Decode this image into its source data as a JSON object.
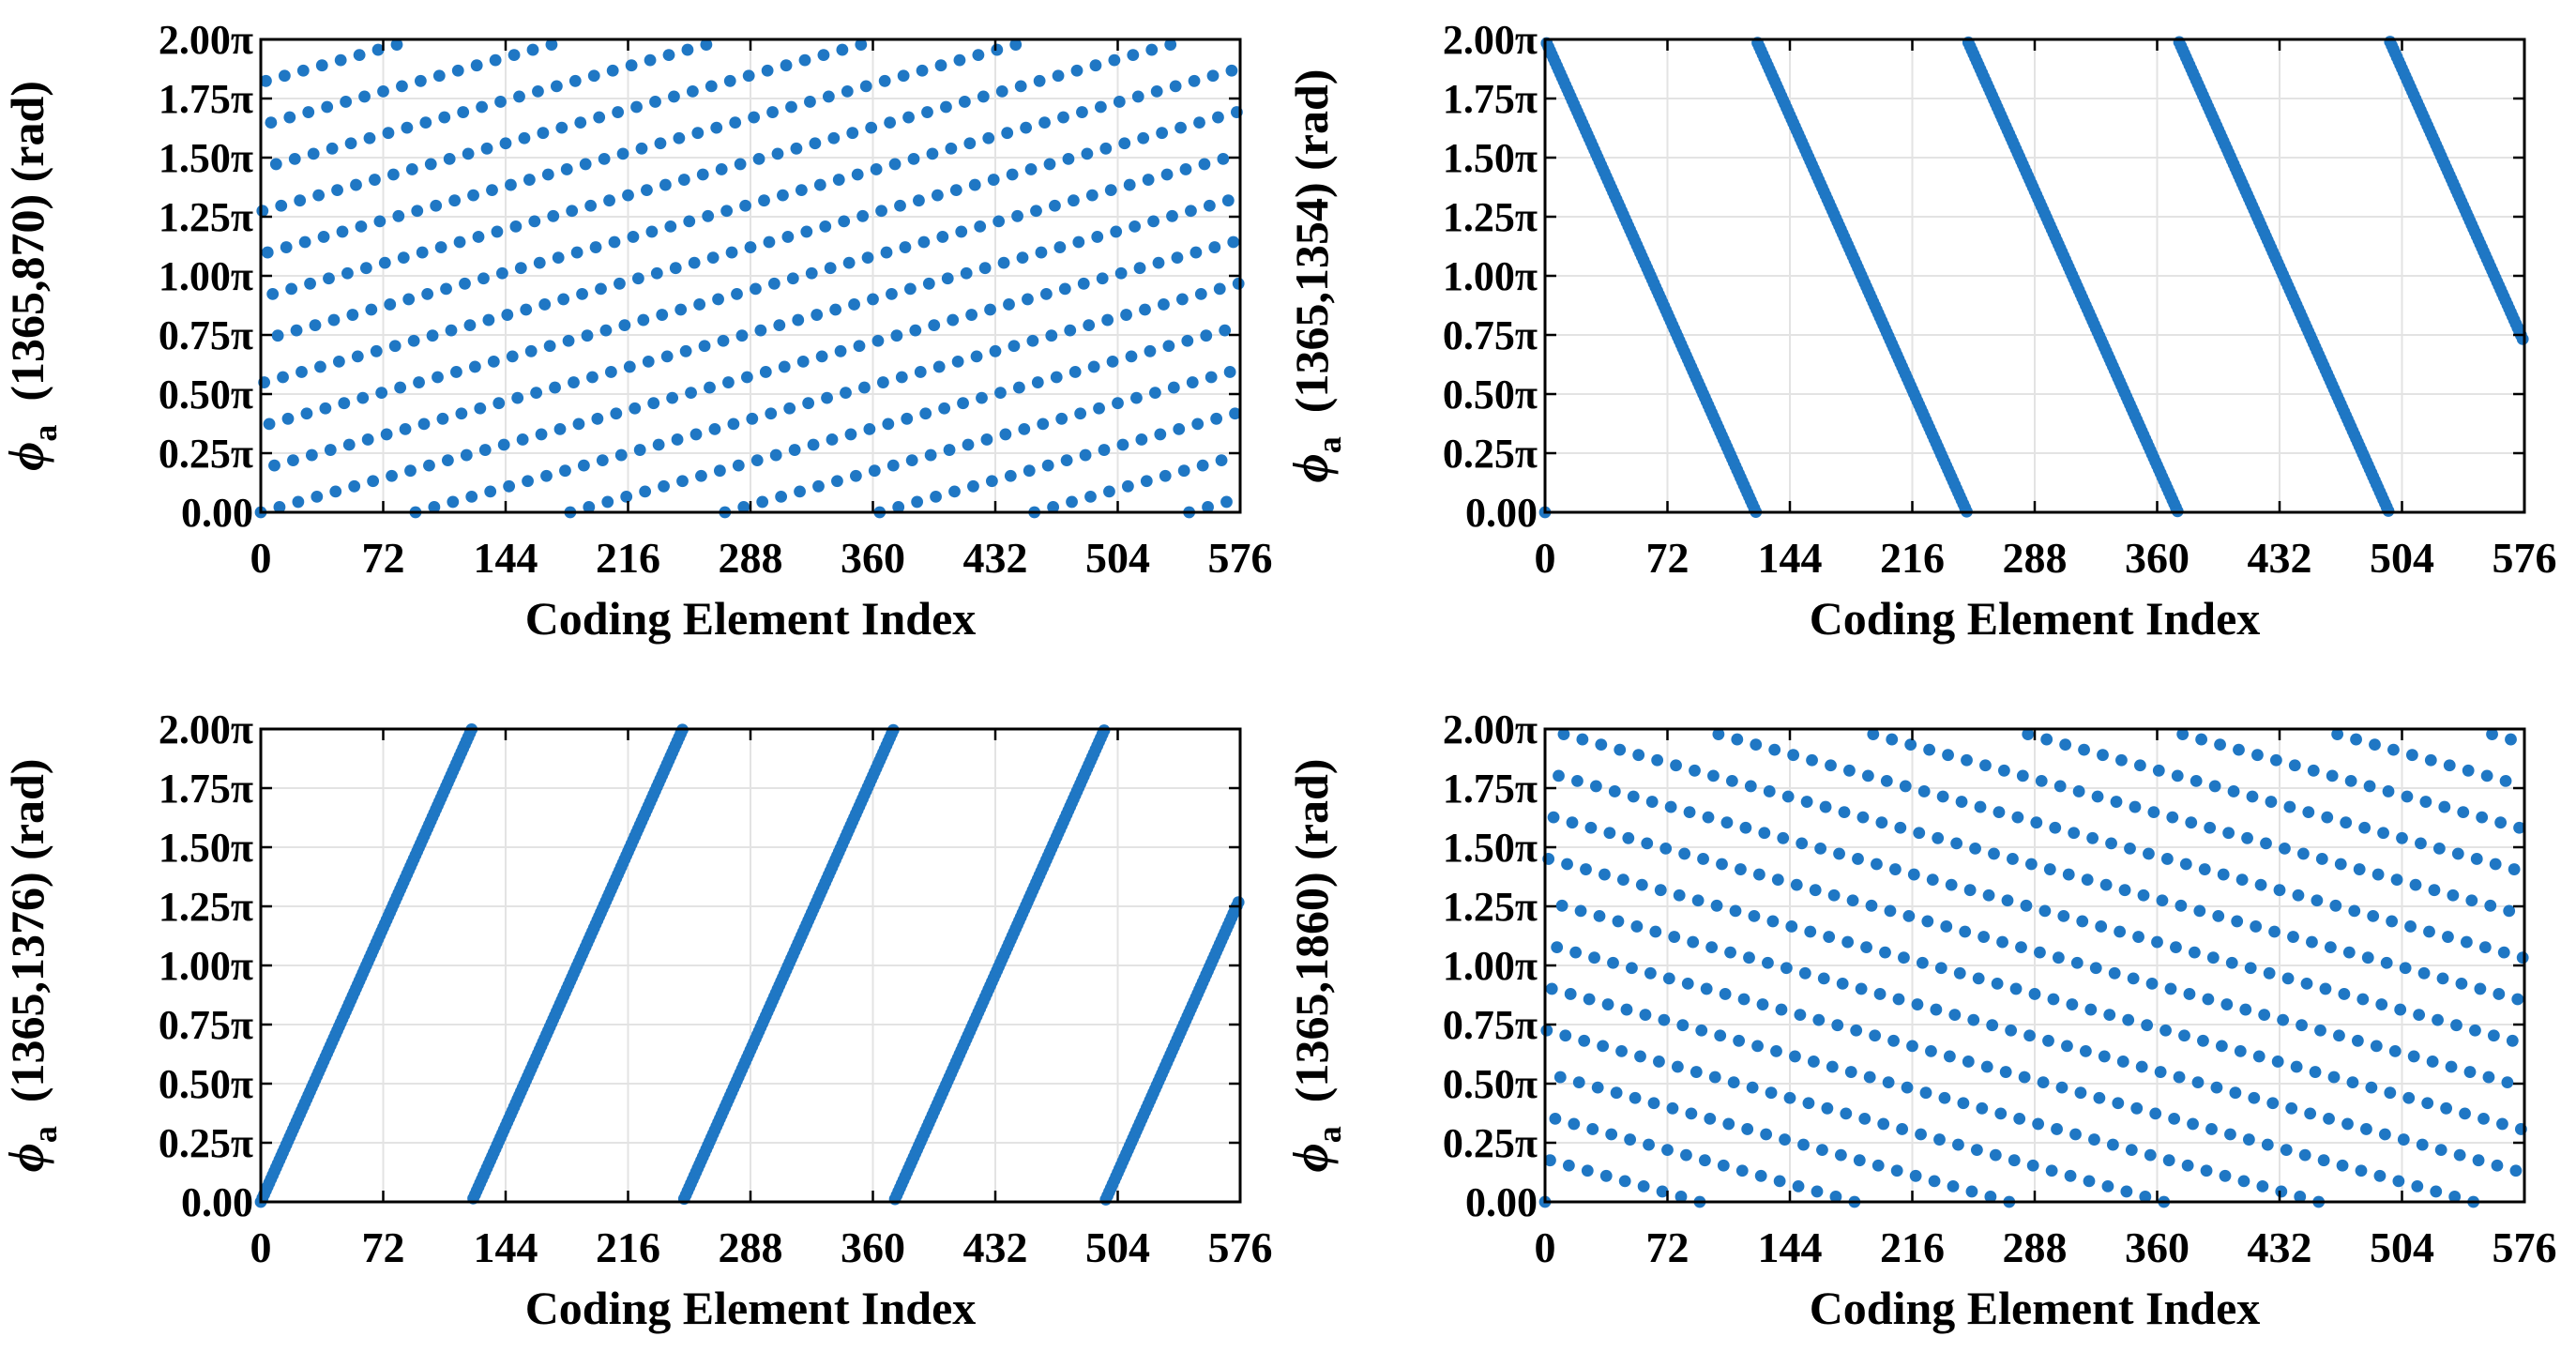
{
  "chart_data": [
    {
      "type": "scatter",
      "xlabel": "Coding Element Index",
      "ylabel": "(1365,870) (rad)",
      "ylabel_symbol": "ϕ",
      "ylabel_subscript": "a",
      "xticks": [
        "0",
        "72",
        "144",
        "216",
        "288",
        "360",
        "432",
        "504",
        "576"
      ],
      "yticks": [
        "0.00",
        "0.25π",
        "0.50π",
        "0.75π",
        "1.00π",
        "1.25π",
        "1.50π",
        "1.75π",
        "2.00π"
      ],
      "xlim": [
        0,
        576
      ],
      "ylim": [
        0,
        2
      ],
      "grid": true,
      "color": "#1f77c4",
      "series": [
        {
          "params": {
            "n": 576,
            "period": 1365,
            "a": 870
          },
          "x": "0..575",
          "y": "phase/π in [0,2)"
        }
      ]
    },
    {
      "type": "scatter",
      "xlabel": "Coding Element Index",
      "ylabel": "(1365,1354) (rad)",
      "ylabel_symbol": "ϕ",
      "ylabel_subscript": "a",
      "xticks": [
        "0",
        "72",
        "144",
        "216",
        "288",
        "360",
        "432",
        "504",
        "576"
      ],
      "yticks": [
        "0.00",
        "0.25π",
        "0.50π",
        "0.75π",
        "1.00π",
        "1.25π",
        "1.50π",
        "1.75π",
        "2.00π"
      ],
      "xlim": [
        0,
        576
      ],
      "ylim": [
        0,
        2
      ],
      "grid": true,
      "color": "#1f77c4",
      "series": [
        {
          "params": {
            "n": 576,
            "period": 1365,
            "a": 1354
          },
          "x": "0..575",
          "y": "phase/π in [0,2)"
        }
      ]
    },
    {
      "type": "scatter",
      "xlabel": "Coding Element Index",
      "ylabel": "(1365,1376) (rad)",
      "ylabel_symbol": "ϕ",
      "ylabel_subscript": "a",
      "xticks": [
        "0",
        "72",
        "144",
        "216",
        "288",
        "360",
        "432",
        "504",
        "576"
      ],
      "yticks": [
        "0.00",
        "0.25π",
        "0.50π",
        "0.75π",
        "1.00π",
        "1.25π",
        "1.50π",
        "1.75π",
        "2.00π"
      ],
      "xlim": [
        0,
        576
      ],
      "ylim": [
        0,
        2
      ],
      "grid": true,
      "color": "#1f77c4",
      "series": [
        {
          "params": {
            "n": 576,
            "period": 1365,
            "a": 1376
          },
          "x": "0..575",
          "y": "phase/π in [0,2)"
        }
      ]
    },
    {
      "type": "scatter",
      "xlabel": "Coding Element Index",
      "ylabel": "(1365,1860) (rad)",
      "ylabel_symbol": "ϕ",
      "ylabel_subscript": "a",
      "xticks": [
        "0",
        "72",
        "144",
        "216",
        "288",
        "360",
        "432",
        "504",
        "576"
      ],
      "yticks": [
        "0.00",
        "0.25π",
        "0.50π",
        "0.75π",
        "1.00π",
        "1.25π",
        "1.50π",
        "1.75π",
        "2.00π"
      ],
      "xlim": [
        0,
        576
      ],
      "ylim": [
        0,
        2
      ],
      "grid": true,
      "color": "#1f77c4",
      "series": [
        {
          "params": {
            "n": 576,
            "period": 1365,
            "a": 1860
          },
          "x": "0..575",
          "y": "phase/π in [0,2)"
        }
      ]
    }
  ]
}
